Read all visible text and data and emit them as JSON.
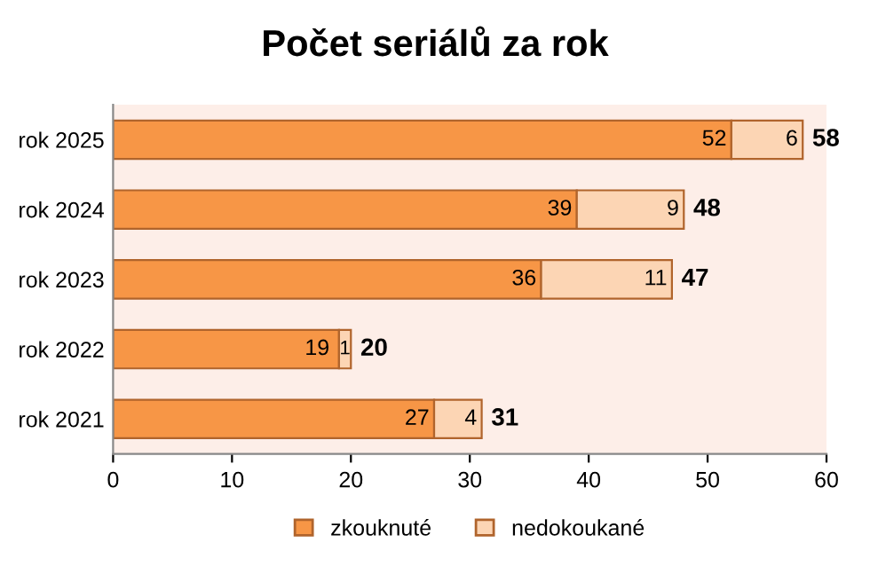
{
  "chart_data": {
    "type": "bar",
    "title": "Počet seriálů za rok",
    "orientation": "horizontal",
    "stacked": true,
    "categories": [
      "rok 2025",
      "rok 2024",
      "rok 2023",
      "rok 2022",
      "rok 2021"
    ],
    "series": [
      {
        "name": "zkouknuté",
        "color": "#f79646",
        "values": [
          52,
          39,
          36,
          19,
          27
        ]
      },
      {
        "name": "nedokoukané",
        "color": "#fcd5b4",
        "values": [
          6,
          9,
          11,
          1,
          4
        ]
      }
    ],
    "totals": [
      "58",
      "48",
      "47",
      "20",
      "31"
    ],
    "data_labels": true,
    "xlim": [
      0,
      60
    ],
    "xticks": [
      0,
      10,
      20,
      30,
      40,
      50,
      60
    ],
    "grid": false,
    "legend": "bottom"
  }
}
